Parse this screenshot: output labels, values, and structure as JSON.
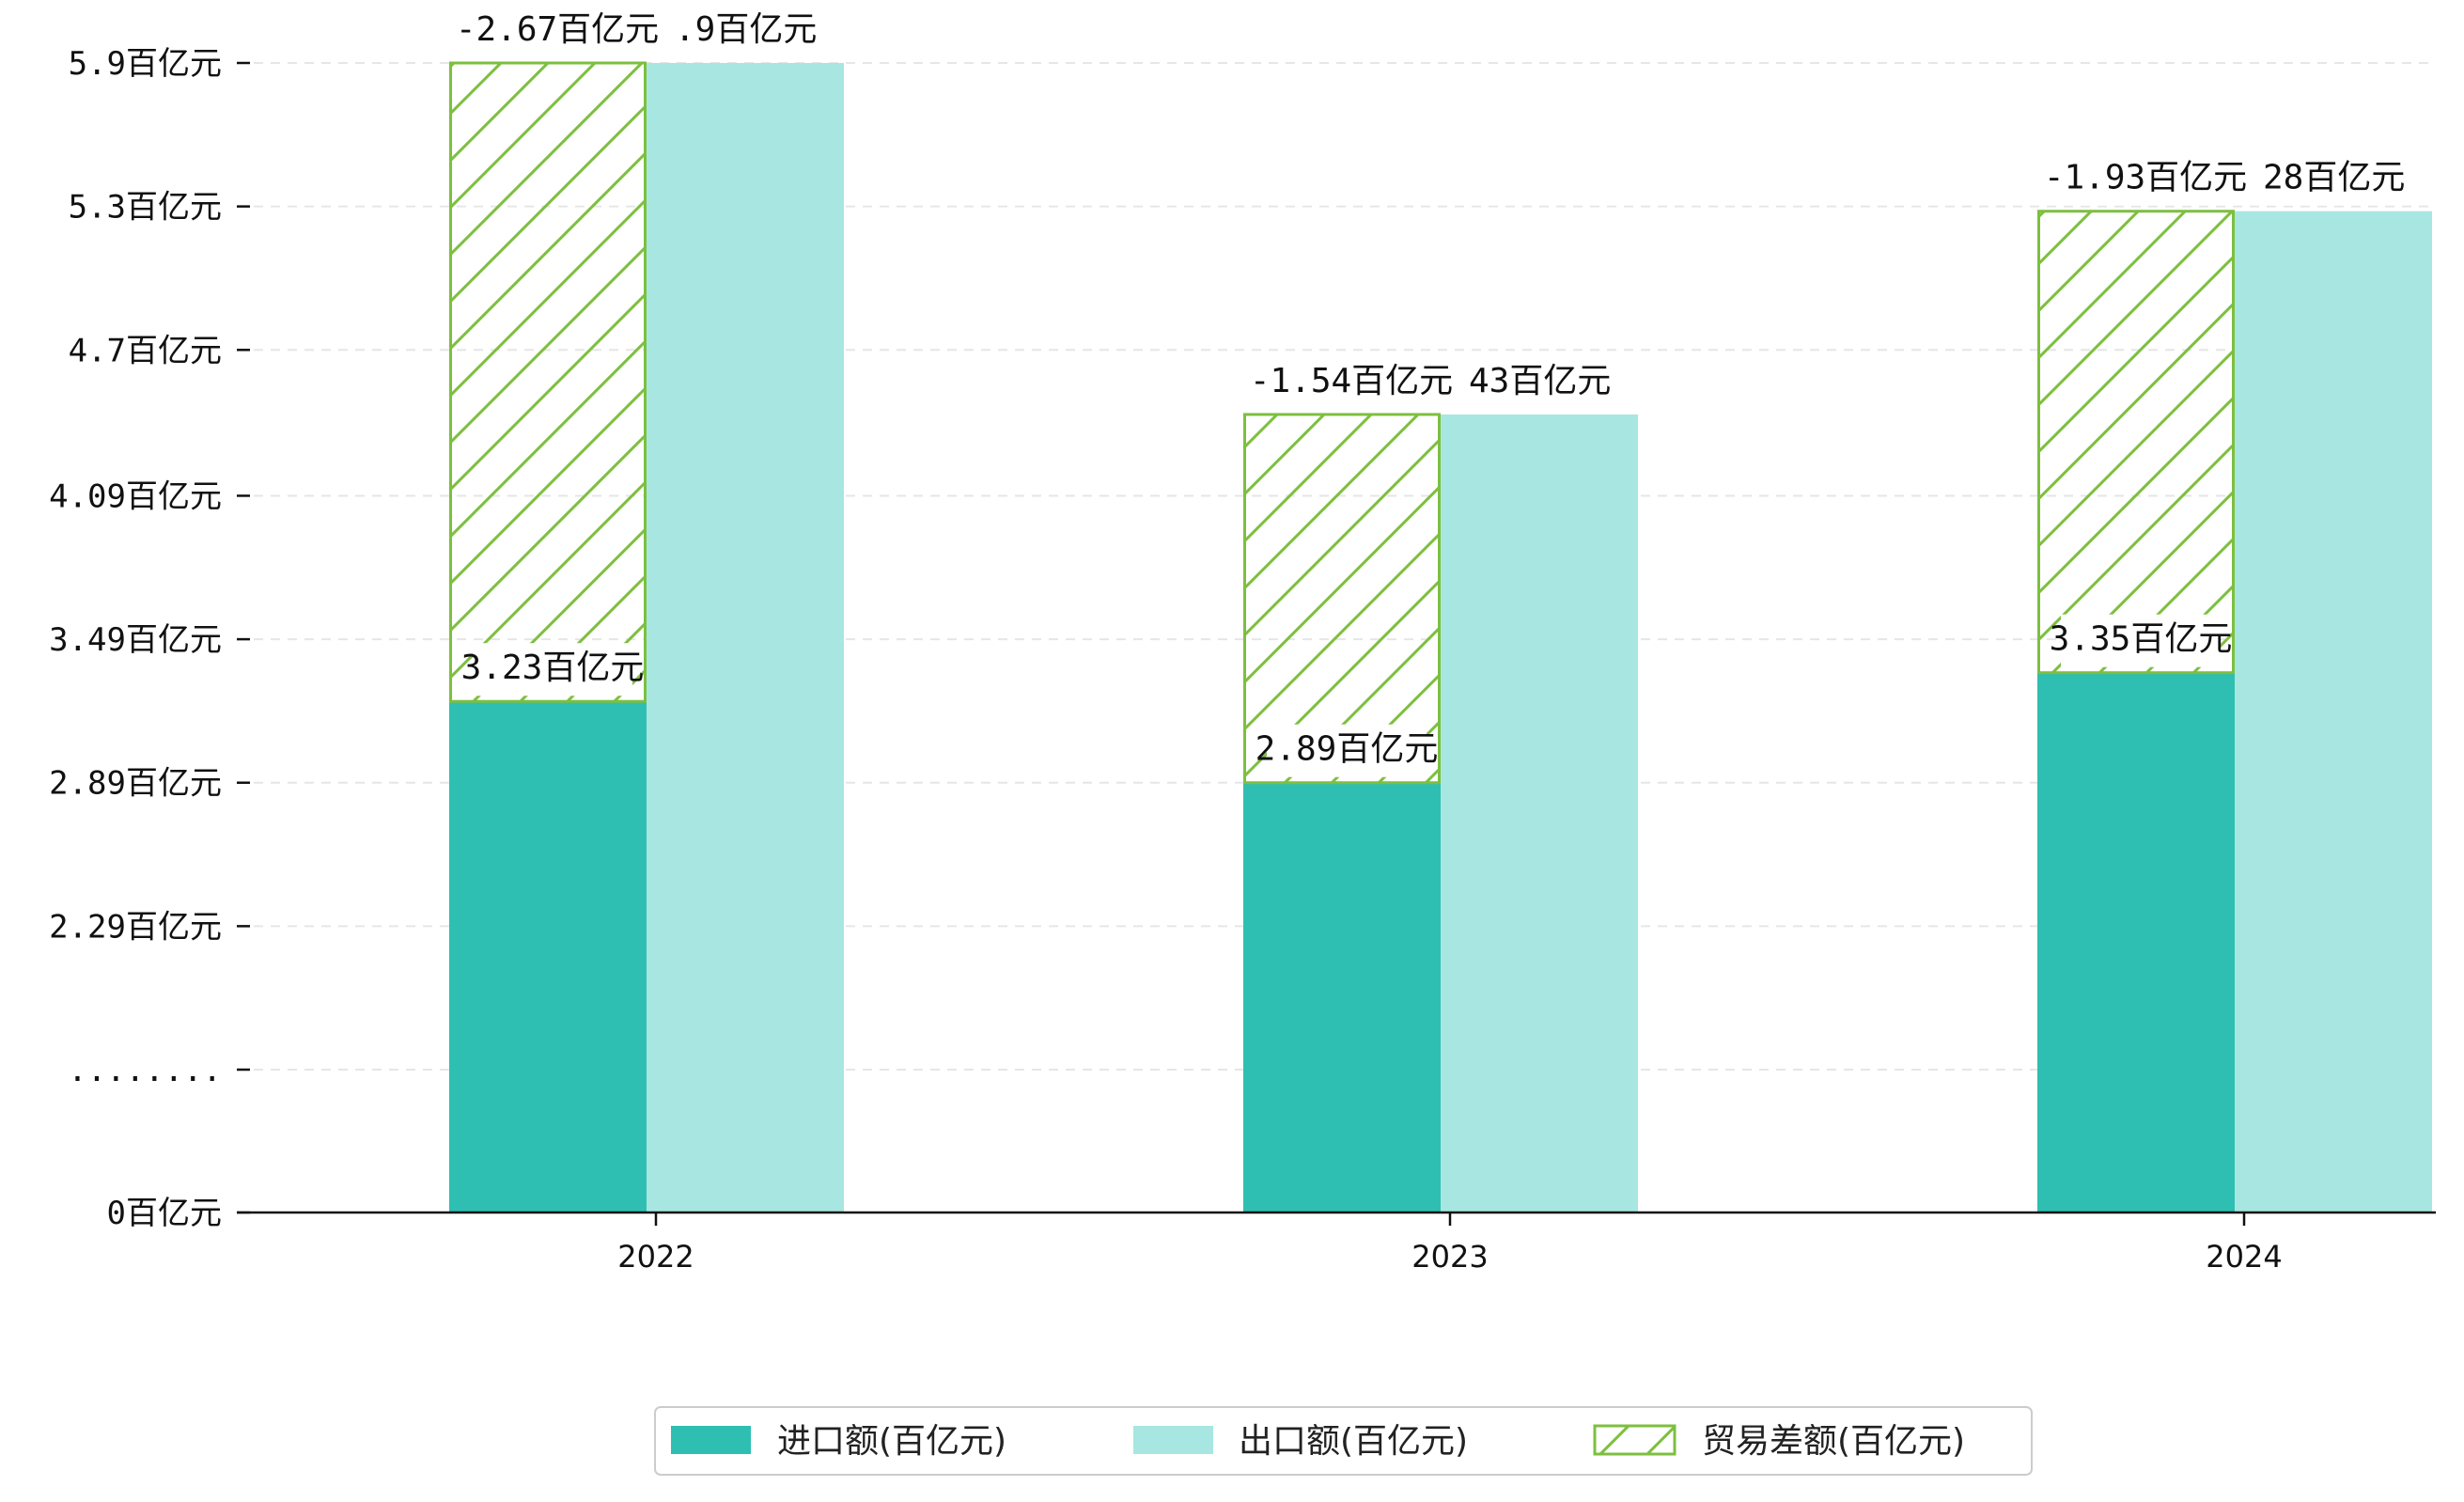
{
  "chart_data": {
    "type": "bar",
    "categories": [
      "2022",
      "2023",
      "2024"
    ],
    "series": [
      {
        "name": "进口额(百亿元)",
        "values": [
          3.23,
          2.89,
          3.35
        ],
        "color": "#2ebfb2"
      },
      {
        "name": "出口额(百亿元)",
        "values": [
          5.9,
          4.43,
          5.28
        ],
        "color": "#a8e6e1"
      },
      {
        "name": "贸易差额(百亿元)",
        "values": [
          -2.67,
          -1.54,
          -1.93
        ],
        "color": "#7dbf3f",
        "pattern": "hatch"
      }
    ],
    "data_labels": {
      "import": [
        "3.23百亿元",
        "2.89百亿元",
        "3.35百亿元"
      ],
      "export": [
        ".9百亿元",
        "43百亿元",
        "28百亿元"
      ],
      "balance": [
        "-2.67百亿元",
        "-1.54百亿元",
        "-1.93百亿元"
      ]
    },
    "y_ticks": [
      {
        "value": 0,
        "label": "0百亿元"
      },
      {
        "value": 1.69,
        "label": "........"
      },
      {
        "value": 2.29,
        "label": "2.29百亿元"
      },
      {
        "value": 2.89,
        "label": "2.89百亿元"
      },
      {
        "value": 3.49,
        "label": "3.49百亿元"
      },
      {
        "value": 4.09,
        "label": "4.09百亿元"
      },
      {
        "value": 4.7,
        "label": "4.7百亿元"
      },
      {
        "value": 5.3,
        "label": "5.3百亿元"
      },
      {
        "value": 5.9,
        "label": "5.9百亿元"
      }
    ],
    "axis_break": true,
    "grid": true,
    "legend_position": "bottom-center"
  }
}
